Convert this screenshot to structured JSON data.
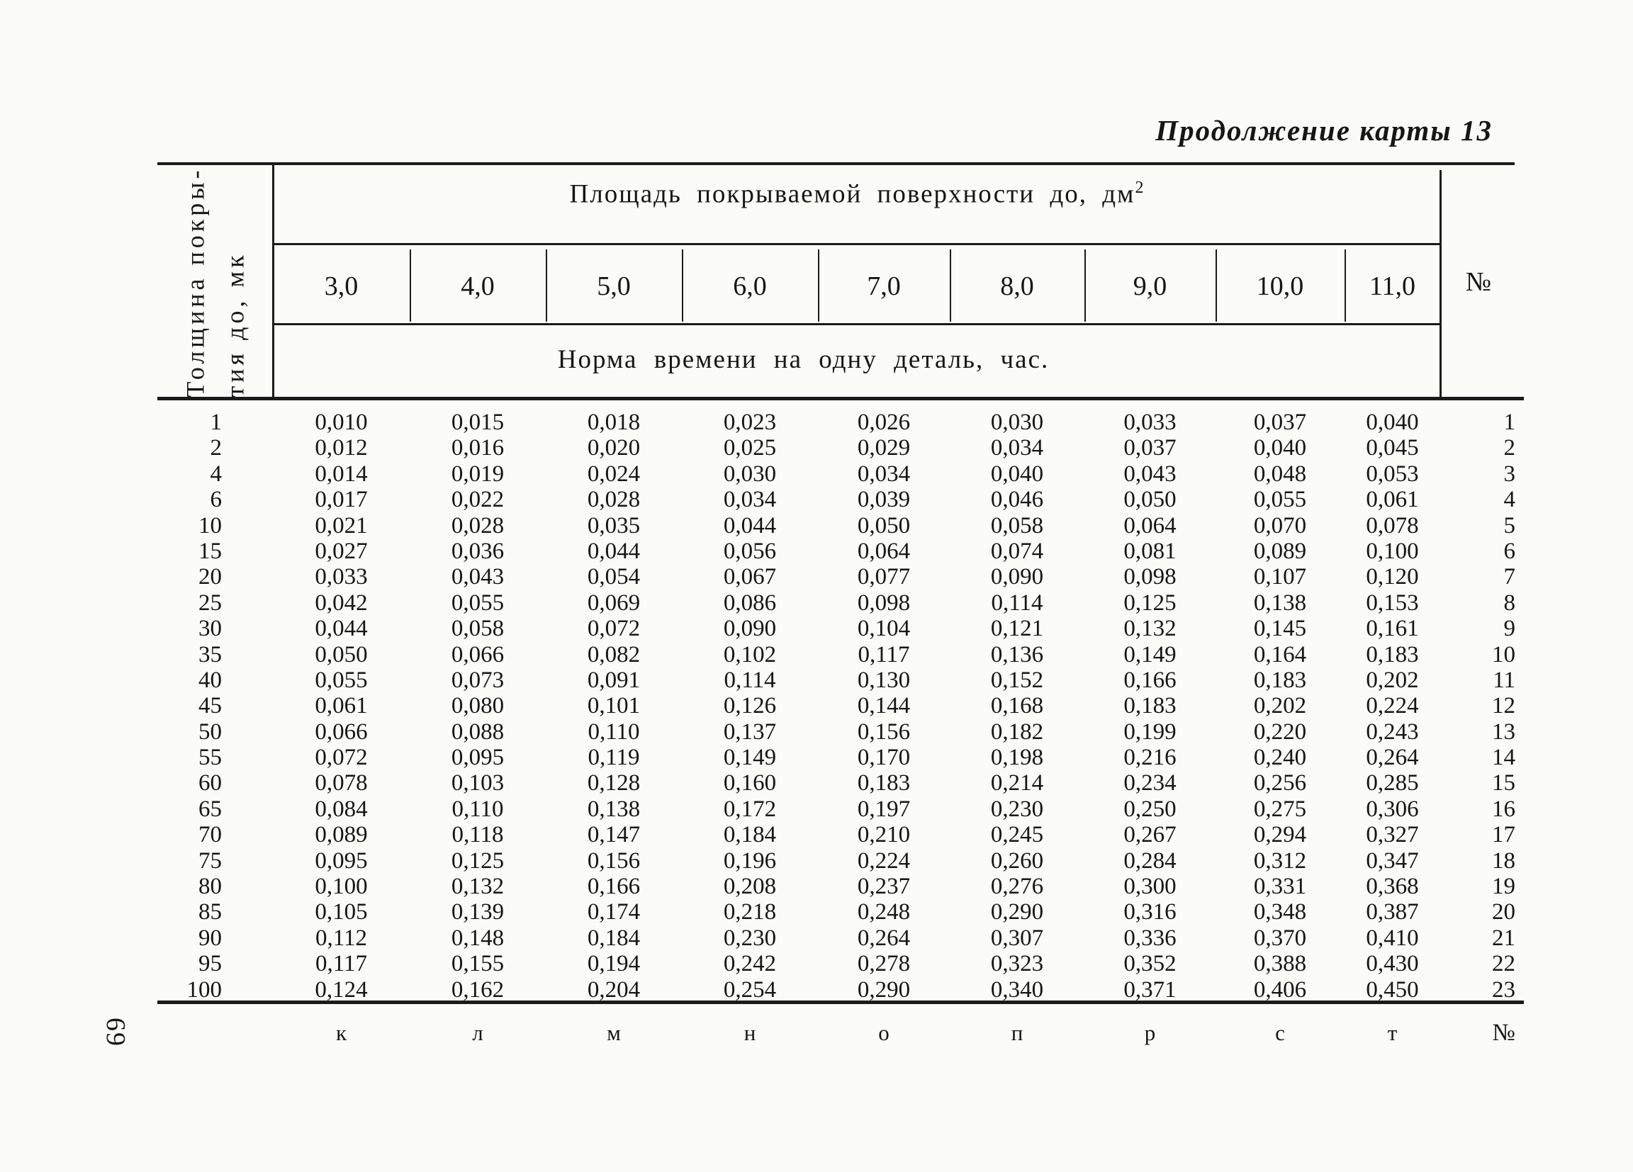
{
  "title": "Продолжение карты 13",
  "page_number": "69",
  "table": {
    "corner_header": {
      "line1": "Толщина покры-",
      "line2": "тия до, мк"
    },
    "area_header": "Площадь покрываемой поверхности до, дм",
    "area_header_sup": "2",
    "columns": [
      "3,0",
      "4,0",
      "5,0",
      "6,0",
      "7,0",
      "8,0",
      "9,0",
      "10,0",
      "11,0"
    ],
    "number_header": "№",
    "subheader": "Норма времени на одну деталь, час.",
    "rows": [
      {
        "thickness": "1",
        "values": [
          "0,010",
          "0,015",
          "0,018",
          "0,023",
          "0,026",
          "0,030",
          "0,033",
          "0,037",
          "0,040"
        ],
        "num": "1"
      },
      {
        "thickness": "2",
        "values": [
          "0,012",
          "0,016",
          "0,020",
          "0,025",
          "0,029",
          "0,034",
          "0,037",
          "0,040",
          "0,045"
        ],
        "num": "2"
      },
      {
        "thickness": "4",
        "values": [
          "0,014",
          "0,019",
          "0,024",
          "0,030",
          "0,034",
          "0,040",
          "0,043",
          "0,048",
          "0,053"
        ],
        "num": "3"
      },
      {
        "thickness": "6",
        "values": [
          "0,017",
          "0,022",
          "0,028",
          "0,034",
          "0,039",
          "0,046",
          "0,050",
          "0,055",
          "0,061"
        ],
        "num": "4"
      },
      {
        "thickness": "10",
        "values": [
          "0,021",
          "0,028",
          "0,035",
          "0,044",
          "0,050",
          "0,058",
          "0,064",
          "0,070",
          "0,078"
        ],
        "num": "5"
      },
      {
        "thickness": "15",
        "values": [
          "0,027",
          "0,036",
          "0,044",
          "0,056",
          "0,064",
          "0,074",
          "0,081",
          "0,089",
          "0,100"
        ],
        "num": "6"
      },
      {
        "thickness": "20",
        "values": [
          "0,033",
          "0,043",
          "0,054",
          "0,067",
          "0,077",
          "0,090",
          "0,098",
          "0,107",
          "0,120"
        ],
        "num": "7"
      },
      {
        "thickness": "25",
        "values": [
          "0,042",
          "0,055",
          "0,069",
          "0,086",
          "0,098",
          "0,114",
          "0,125",
          "0,138",
          "0,153"
        ],
        "num": "8"
      },
      {
        "thickness": "30",
        "values": [
          "0,044",
          "0,058",
          "0,072",
          "0,090",
          "0,104",
          "0,121",
          "0,132",
          "0,145",
          "0,161"
        ],
        "num": "9"
      },
      {
        "thickness": "35",
        "values": [
          "0,050",
          "0,066",
          "0,082",
          "0,102",
          "0,117",
          "0,136",
          "0,149",
          "0,164",
          "0,183"
        ],
        "num": "10"
      },
      {
        "thickness": "40",
        "values": [
          "0,055",
          "0,073",
          "0,091",
          "0,114",
          "0,130",
          "0,152",
          "0,166",
          "0,183",
          "0,202"
        ],
        "num": "11"
      },
      {
        "thickness": "45",
        "values": [
          "0,061",
          "0,080",
          "0,101",
          "0,126",
          "0,144",
          "0,168",
          "0,183",
          "0,202",
          "0,224"
        ],
        "num": "12"
      },
      {
        "thickness": "50",
        "values": [
          "0,066",
          "0,088",
          "0,110",
          "0,137",
          "0,156",
          "0,182",
          "0,199",
          "0,220",
          "0,243"
        ],
        "num": "13"
      },
      {
        "thickness": "55",
        "values": [
          "0,072",
          "0,095",
          "0,119",
          "0,149",
          "0,170",
          "0,198",
          "0,216",
          "0,240",
          "0,264"
        ],
        "num": "14"
      },
      {
        "thickness": "60",
        "values": [
          "0,078",
          "0,103",
          "0,128",
          "0,160",
          "0,183",
          "0,214",
          "0,234",
          "0,256",
          "0,285"
        ],
        "num": "15"
      },
      {
        "thickness": "65",
        "values": [
          "0,084",
          "0,110",
          "0,138",
          "0,172",
          "0,197",
          "0,230",
          "0,250",
          "0,275",
          "0,306"
        ],
        "num": "16"
      },
      {
        "thickness": "70",
        "values": [
          "0,089",
          "0,118",
          "0,147",
          "0,184",
          "0,210",
          "0,245",
          "0,267",
          "0,294",
          "0,327"
        ],
        "num": "17"
      },
      {
        "thickness": "75",
        "values": [
          "0,095",
          "0,125",
          "0,156",
          "0,196",
          "0,224",
          "0,260",
          "0,284",
          "0,312",
          "0,347"
        ],
        "num": "18"
      },
      {
        "thickness": "80",
        "values": [
          "0,100",
          "0,132",
          "0,166",
          "0,208",
          "0,237",
          "0,276",
          "0,300",
          "0,331",
          "0,368"
        ],
        "num": "19"
      },
      {
        "thickness": "85",
        "values": [
          "0,105",
          "0,139",
          "0,174",
          "0,218",
          "0,248",
          "0,290",
          "0,316",
          "0,348",
          "0,387"
        ],
        "num": "20"
      },
      {
        "thickness": "90",
        "values": [
          "0,112",
          "0,148",
          "0,184",
          "0,230",
          "0,264",
          "0,307",
          "0,336",
          "0,370",
          "0,410"
        ],
        "num": "21"
      },
      {
        "thickness": "95",
        "values": [
          "0,117",
          "0,155",
          "0,194",
          "0,242",
          "0,278",
          "0,323",
          "0,352",
          "0,388",
          "0,430"
        ],
        "num": "22"
      },
      {
        "thickness": "100",
        "values": [
          "0,124",
          "0,162",
          "0,204",
          "0,254",
          "0,290",
          "0,340",
          "0,371",
          "0,406",
          "0,450"
        ],
        "num": "23"
      }
    ],
    "footer_letters": [
      "к",
      "л",
      "м",
      "н",
      "о",
      "п",
      "р",
      "с",
      "т"
    ],
    "footer_number": "№"
  },
  "colors": {
    "ink": "#1b1b1b",
    "paper": "#fbfbf8"
  }
}
